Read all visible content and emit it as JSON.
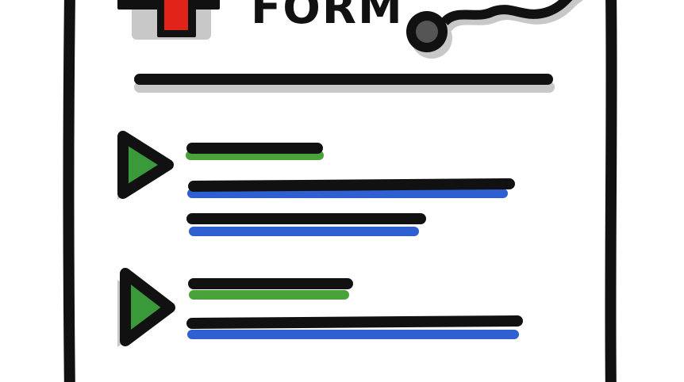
{
  "form": {
    "title": "FORM"
  },
  "colors": {
    "ink": "#111111",
    "medical_cross": "#e2231a",
    "play_icon": "#3a9a3a",
    "field_label_underline": "#4aa33a",
    "field_value_underline": "#2f5fd0",
    "shadow": "#c8c8c8",
    "paper": "#ffffff"
  },
  "icons": {
    "header_left": "medical-cross-icon",
    "header_right": "stethoscope-icon",
    "item_marker": "play-icon"
  },
  "sections": [
    {
      "marker": "play-icon",
      "label_lines": 1,
      "value_lines": 2
    },
    {
      "marker": "play-icon",
      "label_lines": 1,
      "value_lines": 1
    }
  ]
}
